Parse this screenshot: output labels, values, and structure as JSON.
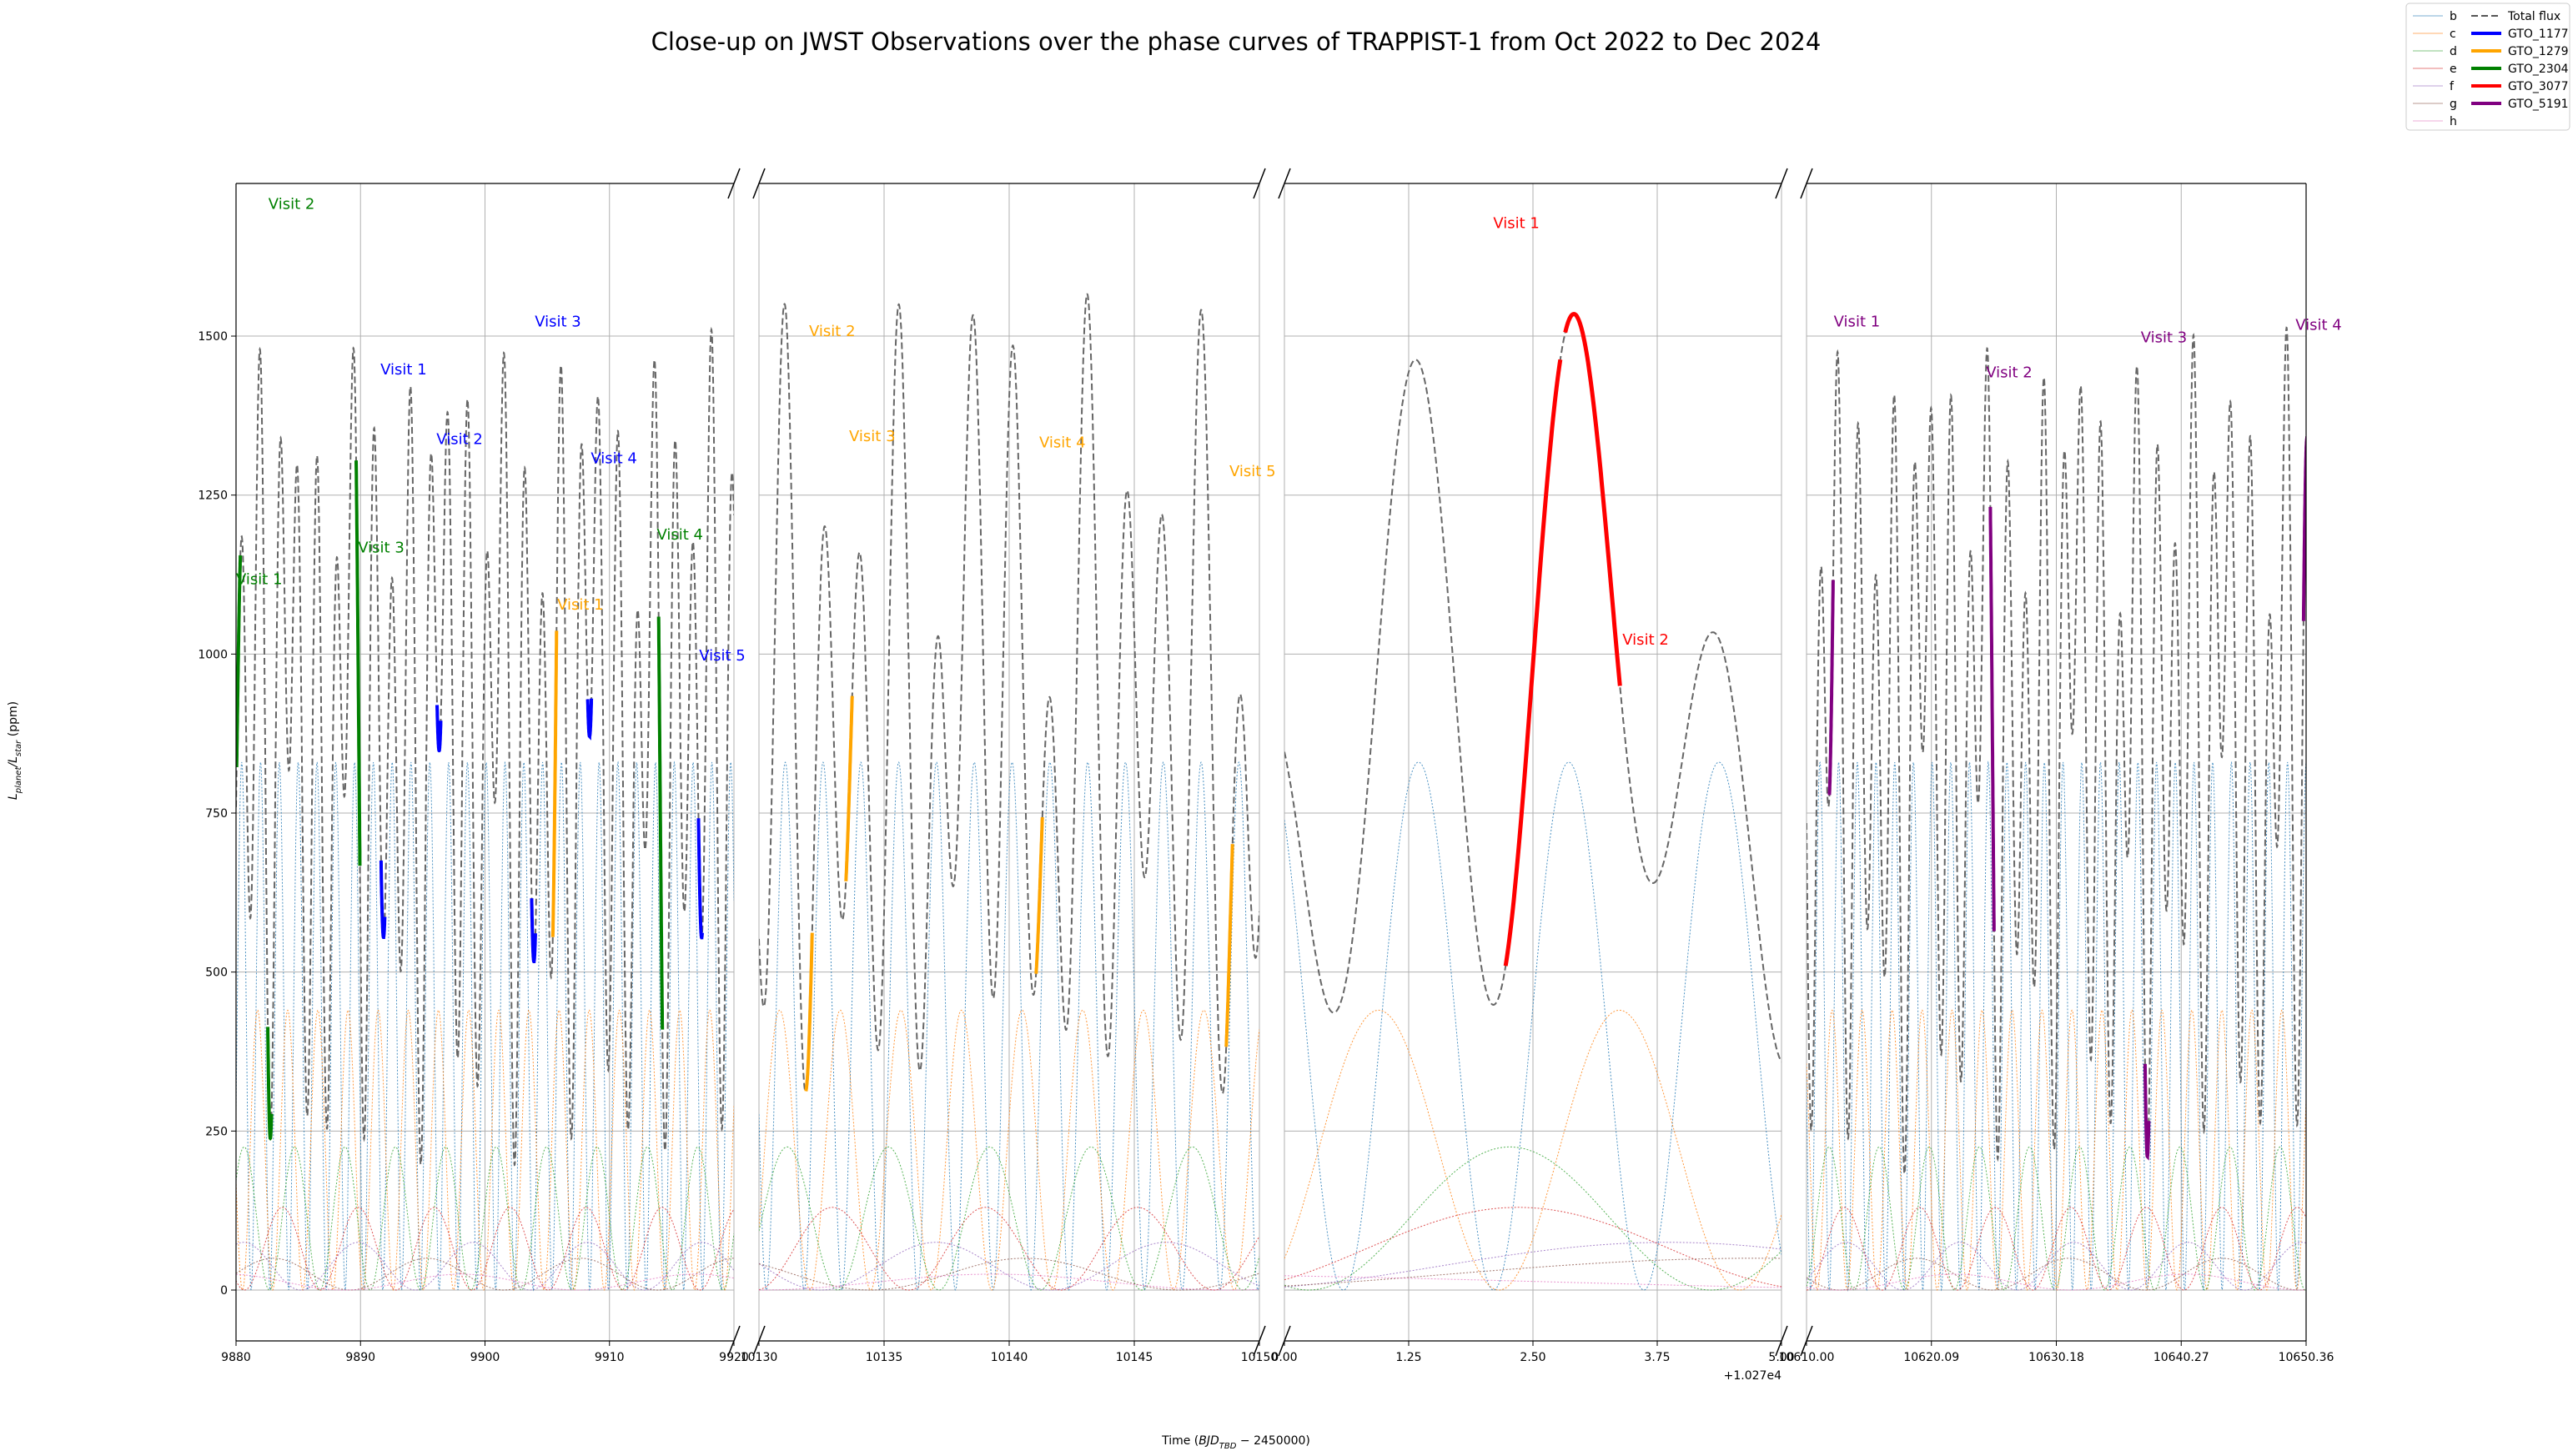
{
  "chart_data": {
    "type": "line",
    "title": "Close-up on JWST Observations over the phase curves of TRAPPIST-1 from Oct 2022 to Dec 2024",
    "xlabel": "Time ($BJD_{TBD} - 2450000$)",
    "ylabel": "$L_{planet}/L_{star}$ (ppm)",
    "ylim": [
      -80,
      1740
    ],
    "yticks": [
      0,
      250,
      500,
      750,
      1000,
      1250,
      1500
    ],
    "grid": true,
    "broken_axis": true,
    "panels": [
      {
        "xlim": [
          9880,
          9920
        ],
        "xticks": [
          "9880",
          "9890",
          "9900",
          "9910",
          "9920"
        ],
        "tickvals": [
          9880,
          9890,
          9900,
          9910,
          9920
        ]
      },
      {
        "xlim": [
          10130,
          10150
        ],
        "xticks": [
          "10130",
          "10135",
          "10140",
          "10145",
          "10150"
        ],
        "tickvals": [
          10130,
          10135,
          10140,
          10145,
          10150
        ]
      },
      {
        "xlim": [
          10270,
          10275
        ],
        "xticks": [
          "0.00",
          "1.25",
          "2.50",
          "3.75",
          "5.00"
        ],
        "tickvals": [
          10270,
          10271.25,
          10272.5,
          10273.75,
          10275
        ],
        "offset_label": "+1.027e4"
      },
      {
        "xlim": [
          10610,
          10650.36
        ],
        "xticks": [
          "10610.00",
          "10620.09",
          "10630.18",
          "10640.27",
          "10650.36"
        ],
        "tickvals": [
          10610,
          10620.09,
          10630.18,
          10640.27,
          10650.36
        ]
      }
    ],
    "legend": {
      "position": "top-right",
      "planets": [
        "b",
        "c",
        "d",
        "e",
        "f",
        "g",
        "h"
      ],
      "total_flux": "Total flux",
      "programs": [
        {
          "name": "GTO_1177",
          "color": "#0000ff"
        },
        {
          "name": "GTO_1279",
          "color": "#ffa500"
        },
        {
          "name": "GTO_2304",
          "color": "#008000"
        },
        {
          "name": "GTO_3077",
          "color": "#ff0000"
        },
        {
          "name": "GTO_5191",
          "color": "#800080"
        }
      ]
    },
    "planet_colors": [
      "#1f77b4",
      "#ff7f0e",
      "#2ca02c",
      "#d62728",
      "#9467bd",
      "#8c564b",
      "#e377c2"
    ],
    "planet_models": [
      {
        "name": "b",
        "amplitude": 830,
        "period": 1.5109
      },
      {
        "name": "c",
        "amplitude": 440,
        "period": 2.4218
      },
      {
        "name": "d",
        "amplitude": 225,
        "period": 4.0492
      },
      {
        "name": "e",
        "amplitude": 130,
        "period": 6.0996
      },
      {
        "name": "f",
        "amplitude": 75,
        "period": 9.2067
      },
      {
        "name": "g",
        "amplitude": 50,
        "period": 12.3529
      },
      {
        "name": "h",
        "amplitude": 25,
        "period": 18.767
      }
    ],
    "visits": [
      {
        "label": "Visit 1",
        "program": "GTO_2304",
        "panel": 0,
        "x": 9880.2,
        "label_x": 9880.0,
        "label_y": 1110
      },
      {
        "label": "Visit 2",
        "program": "GTO_2304",
        "panel": 0,
        "x": 9882.7,
        "label_x": 9882.6,
        "label_y": 1700
      },
      {
        "label": "Visit 3",
        "program": "GTO_2304",
        "panel": 0,
        "x": 9889.8,
        "label_x": 9889.8,
        "label_y": 1160
      },
      {
        "label": "Visit 4",
        "program": "GTO_2304",
        "panel": 0,
        "x": 9914.1,
        "label_x": 9913.8,
        "label_y": 1180
      },
      {
        "label": "Visit 1",
        "program": "GTO_1177",
        "panel": 0,
        "x": 9891.8,
        "label_x": 9891.6,
        "label_y": 1440
      },
      {
        "label": "Visit 2",
        "program": "GTO_1177",
        "panel": 0,
        "x": 9896.3,
        "label_x": 9896.1,
        "label_y": 1330
      },
      {
        "label": "Visit 3",
        "program": "GTO_1177",
        "panel": 0,
        "x": 9903.9,
        "label_x": 9904.0,
        "label_y": 1515
      },
      {
        "label": "Visit 4",
        "program": "GTO_1177",
        "panel": 0,
        "x": 9908.4,
        "label_x": 9908.5,
        "label_y": 1300
      },
      {
        "label": "Visit 5",
        "program": "GTO_1177",
        "panel": 0,
        "x": 9917.3,
        "label_x": 9917.2,
        "label_y": 990
      },
      {
        "label": "Visit 1",
        "program": "GTO_1279",
        "panel": 0,
        "x": 9905.6,
        "label_x": 9905.8,
        "label_y": 1070
      },
      {
        "label": "Visit 2",
        "program": "GTO_1279",
        "panel": 1,
        "x": 10132.0,
        "label_x": 10132.0,
        "label_y": 1500
      },
      {
        "label": "Visit 3",
        "program": "GTO_1279",
        "panel": 1,
        "x": 10133.6,
        "label_x": 10133.6,
        "label_y": 1335
      },
      {
        "label": "Visit 4",
        "program": "GTO_1279",
        "panel": 1,
        "x": 10141.2,
        "label_x": 10141.2,
        "label_y": 1325
      },
      {
        "label": "Visit 5",
        "program": "GTO_1279",
        "panel": 1,
        "x": 10148.8,
        "label_x": 10148.8,
        "label_y": 1280
      },
      {
        "label": "Visit 1",
        "program": "GTO_3077",
        "panel": 2,
        "x": 10272.5,
        "label_x": 10272.1,
        "label_y": 1670
      },
      {
        "label": "Visit 2",
        "program": "GTO_3077",
        "panel": 2,
        "x": 10273.1,
        "label_x": 10273.4,
        "label_y": 1015
      },
      {
        "label": "Visit 1",
        "program": "GTO_5191",
        "panel": 3,
        "x": 10612.0,
        "label_x": 10612.2,
        "label_y": 1515
      },
      {
        "label": "Visit 2",
        "program": "GTO_5191",
        "panel": 3,
        "x": 10625.0,
        "label_x": 10624.5,
        "label_y": 1435
      },
      {
        "label": "Visit 3",
        "program": "GTO_5191",
        "panel": 3,
        "x": 10637.5,
        "label_x": 10637.0,
        "label_y": 1490
      },
      {
        "label": "Visit 4",
        "program": "GTO_5191",
        "panel": 3,
        "x": 10650.3,
        "label_x": 10649.5,
        "label_y": 1510
      }
    ]
  }
}
